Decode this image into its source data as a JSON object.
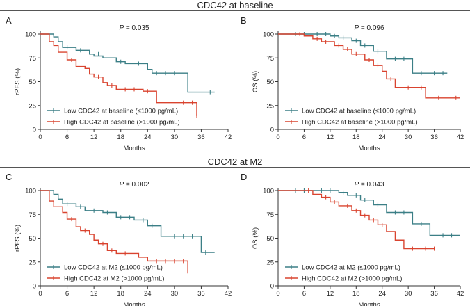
{
  "sections": [
    {
      "title": "CDC42 at baseline"
    },
    {
      "title": "CDC42 at M2"
    }
  ],
  "colors": {
    "low": "#3b7f86",
    "high": "#d9432f",
    "axis": "#333333"
  },
  "chart_data": [
    {
      "type": "line",
      "subtype": "kaplan-meier",
      "panel": "A",
      "title": "",
      "pvalue_label": "P",
      "pvalue_text": " = 0.035",
      "xlabel": "Months",
      "ylabel": "rPFS (%)",
      "xlim": [
        0,
        42
      ],
      "ylim": [
        0,
        100
      ],
      "xticks": [
        "0",
        "6",
        "12",
        "18",
        "24",
        "30",
        "36",
        "42"
      ],
      "yticks": [
        "0",
        "25",
        "50",
        "75",
        "100"
      ],
      "legend_position": "bottom-left",
      "series": [
        {
          "name": "Low CDC42 at baseline (≤1000 pg/mL)",
          "group": "low",
          "steps": [
            [
              0,
              100
            ],
            [
              3,
              97
            ],
            [
              4,
              92
            ],
            [
              5,
              86
            ],
            [
              8,
              83
            ],
            [
              11,
              79
            ],
            [
              12,
              77
            ],
            [
              14,
              75
            ],
            [
              17,
              71
            ],
            [
              19,
              69
            ],
            [
              24,
              63
            ],
            [
              25,
              59
            ],
            [
              33,
              39
            ],
            [
              39,
              39
            ]
          ],
          "censors": [
            [
              6,
              86
            ],
            [
              9,
              83
            ],
            [
              13,
              79
            ],
            [
              18,
              71
            ],
            [
              22,
              69
            ],
            [
              26,
              59
            ],
            [
              28,
              59
            ],
            [
              30,
              59
            ],
            [
              38,
              39
            ]
          ]
        },
        {
          "name": "High CDC42 at baseline (>1000 pg/mL)",
          "group": "high",
          "steps": [
            [
              0,
              100
            ],
            [
              2,
              92
            ],
            [
              3,
              88
            ],
            [
              4,
              81
            ],
            [
              6,
              73
            ],
            [
              8,
              66
            ],
            [
              10,
              64
            ],
            [
              11,
              58
            ],
            [
              12,
              55
            ],
            [
              14,
              49
            ],
            [
              15,
              46
            ],
            [
              17,
              42
            ],
            [
              23,
              40
            ],
            [
              26,
              28
            ],
            [
              35,
              14
            ]
          ],
          "censors": [
            [
              7,
              73
            ],
            [
              13,
              55
            ],
            [
              16,
              46
            ],
            [
              19,
              42
            ],
            [
              21,
              42
            ],
            [
              24,
              40
            ],
            [
              32,
              28
            ],
            [
              34,
              28
            ],
            [
              35,
              14
            ]
          ]
        }
      ]
    },
    {
      "type": "line",
      "subtype": "kaplan-meier",
      "panel": "B",
      "title": "",
      "pvalue_label": "P",
      "pvalue_text": " = 0.096",
      "xlabel": "Months",
      "ylabel": "OS (%)",
      "xlim": [
        0,
        42
      ],
      "ylim": [
        0,
        100
      ],
      "xticks": [
        "0",
        "6",
        "12",
        "18",
        "24",
        "30",
        "36",
        "42"
      ],
      "yticks": [
        "0",
        "25",
        "50",
        "75",
        "100"
      ],
      "legend_position": "bottom-left",
      "series": [
        {
          "name": "Low CDC42 at baseline (≤1000 pg/mL)",
          "group": "low",
          "steps": [
            [
              0,
              100
            ],
            [
              12,
              98
            ],
            [
              14,
              96
            ],
            [
              17,
              93
            ],
            [
              19,
              88
            ],
            [
              22,
              82
            ],
            [
              25,
              74
            ],
            [
              31,
              59
            ],
            [
              39,
              59
            ]
          ],
          "censors": [
            [
              4,
              100
            ],
            [
              6,
              100
            ],
            [
              9,
              100
            ],
            [
              11,
              100
            ],
            [
              13,
              98
            ],
            [
              15,
              96
            ],
            [
              18,
              93
            ],
            [
              20,
              88
            ],
            [
              23,
              82
            ],
            [
              27,
              74
            ],
            [
              29,
              74
            ],
            [
              33,
              59
            ],
            [
              36,
              59
            ],
            [
              38,
              59
            ]
          ]
        },
        {
          "name": "High CDC42 at baseline (>1000 pg/mL)",
          "group": "high",
          "steps": [
            [
              0,
              100
            ],
            [
              6,
              98
            ],
            [
              8,
              95
            ],
            [
              10,
              92
            ],
            [
              13,
              88
            ],
            [
              15,
              84
            ],
            [
              17,
              79
            ],
            [
              20,
              73
            ],
            [
              22,
              67
            ],
            [
              24,
              61
            ],
            [
              25,
              53
            ],
            [
              27,
              44
            ],
            [
              34,
              33
            ],
            [
              42,
              33
            ]
          ],
          "censors": [
            [
              5,
              100
            ],
            [
              9,
              95
            ],
            [
              11,
              92
            ],
            [
              14,
              88
            ],
            [
              16,
              84
            ],
            [
              18,
              79
            ],
            [
              21,
              73
            ],
            [
              23,
              67
            ],
            [
              26,
              53
            ],
            [
              30,
              44
            ],
            [
              33,
              44
            ],
            [
              37,
              33
            ],
            [
              41,
              33
            ]
          ]
        }
      ]
    },
    {
      "type": "line",
      "subtype": "kaplan-meier",
      "panel": "C",
      "title": "",
      "pvalue_label": "P",
      "pvalue_text": " = 0.002",
      "xlabel": "Months",
      "ylabel": "rPFS (%)",
      "xlim": [
        0,
        42
      ],
      "ylim": [
        0,
        100
      ],
      "xticks": [
        "0",
        "6",
        "12",
        "18",
        "24",
        "30",
        "36",
        "42"
      ],
      "yticks": [
        "0",
        "25",
        "50",
        "75",
        "100"
      ],
      "legend_position": "bottom-left",
      "series": [
        {
          "name": "Low CDC42 at M2 (≤1000 pg/mL)",
          "group": "low",
          "steps": [
            [
              0,
              100
            ],
            [
              3,
              96
            ],
            [
              4,
              91
            ],
            [
              5,
              86
            ],
            [
              8,
              83
            ],
            [
              10,
              79
            ],
            [
              14,
              77
            ],
            [
              17,
              72
            ],
            [
              21,
              69
            ],
            [
              24,
              63
            ],
            [
              27,
              52
            ],
            [
              36,
              35
            ],
            [
              39,
              35
            ]
          ],
          "censors": [
            [
              6,
              86
            ],
            [
              9,
              83
            ],
            [
              12,
              79
            ],
            [
              15,
              77
            ],
            [
              18,
              72
            ],
            [
              20,
              72
            ],
            [
              23,
              69
            ],
            [
              25,
              63
            ],
            [
              30,
              52
            ],
            [
              32,
              52
            ],
            [
              34,
              52
            ],
            [
              37,
              35
            ]
          ]
        },
        {
          "name": "High CDC42 at M2 (>1000 pg/mL)",
          "group": "high",
          "steps": [
            [
              0,
              100
            ],
            [
              2,
              89
            ],
            [
              3,
              83
            ],
            [
              5,
              77
            ],
            [
              6,
              70
            ],
            [
              8,
              62
            ],
            [
              9,
              58
            ],
            [
              11,
              54
            ],
            [
              12,
              48
            ],
            [
              13,
              44
            ],
            [
              15,
              37
            ],
            [
              17,
              34
            ],
            [
              22,
              30
            ],
            [
              24,
              26
            ],
            [
              33,
              13
            ]
          ],
          "censors": [
            [
              7,
              70
            ],
            [
              10,
              58
            ],
            [
              14,
              44
            ],
            [
              16,
              37
            ],
            [
              19,
              34
            ],
            [
              26,
              26
            ],
            [
              28,
              26
            ],
            [
              30,
              26
            ],
            [
              32,
              26
            ]
          ]
        }
      ]
    },
    {
      "type": "line",
      "subtype": "kaplan-meier",
      "panel": "D",
      "title": "",
      "pvalue_label": "P",
      "pvalue_text": " = 0.043",
      "xlabel": "Months",
      "ylabel": "OS (%)",
      "xlim": [
        0,
        42
      ],
      "ylim": [
        0,
        100
      ],
      "xticks": [
        "0",
        "6",
        "12",
        "18",
        "24",
        "30",
        "36",
        "42"
      ],
      "yticks": [
        "0",
        "25",
        "50",
        "75",
        "100"
      ],
      "legend_position": "bottom-left",
      "series": [
        {
          "name": "Low CDC42 at M2 (≤1000 pg/mL)",
          "group": "low",
          "steps": [
            [
              0,
              100
            ],
            [
              14,
              98
            ],
            [
              16,
              95
            ],
            [
              19,
              90
            ],
            [
              22,
              85
            ],
            [
              25,
              77
            ],
            [
              31,
              65
            ],
            [
              35,
              53
            ],
            [
              42,
              53
            ]
          ],
          "censors": [
            [
              4,
              100
            ],
            [
              6,
              100
            ],
            [
              10,
              100
            ],
            [
              12,
              100
            ],
            [
              15,
              98
            ],
            [
              18,
              95
            ],
            [
              20,
              90
            ],
            [
              23,
              85
            ],
            [
              27,
              77
            ],
            [
              29,
              77
            ],
            [
              33,
              65
            ],
            [
              38,
              53
            ],
            [
              40,
              53
            ]
          ]
        },
        {
          "name": "High CDC42 at M2 (>1000 pg/mL)",
          "group": "high",
          "steps": [
            [
              0,
              100
            ],
            [
              8,
              96
            ],
            [
              10,
              93
            ],
            [
              12,
              88
            ],
            [
              14,
              84
            ],
            [
              17,
              79
            ],
            [
              19,
              74
            ],
            [
              21,
              69
            ],
            [
              23,
              64
            ],
            [
              25,
              57
            ],
            [
              27,
              48
            ],
            [
              29,
              39
            ],
            [
              36,
              39
            ]
          ],
          "censors": [
            [
              7,
              100
            ],
            [
              11,
              93
            ],
            [
              13,
              88
            ],
            [
              16,
              84
            ],
            [
              18,
              79
            ],
            [
              20,
              74
            ],
            [
              22,
              69
            ],
            [
              24,
              64
            ],
            [
              31,
              39
            ],
            [
              34,
              39
            ],
            [
              36,
              39
            ]
          ]
        }
      ]
    }
  ]
}
